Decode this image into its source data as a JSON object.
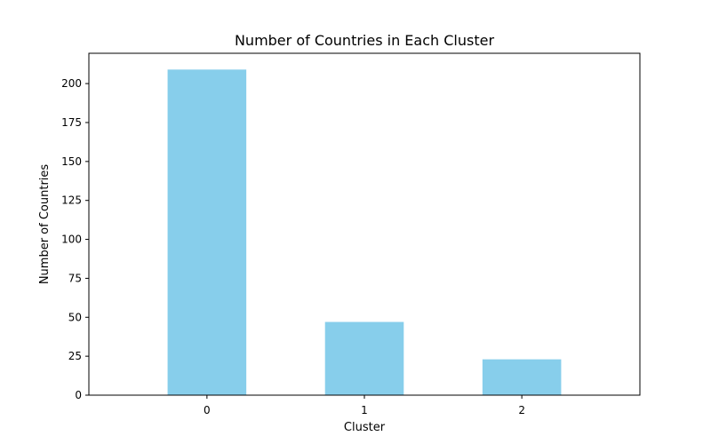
{
  "chart_data": {
    "type": "bar",
    "title": "Number of Countries in Each Cluster",
    "xlabel": "Cluster",
    "ylabel": "Number of Countries",
    "categories": [
      "0",
      "1",
      "2"
    ],
    "values": [
      209,
      47,
      23
    ],
    "ylim": [
      0,
      219.45
    ],
    "yticks": [
      0,
      25,
      50,
      75,
      100,
      125,
      150,
      175,
      200
    ],
    "bar_color": "#87CEEB",
    "grid": false,
    "legend": "none"
  }
}
